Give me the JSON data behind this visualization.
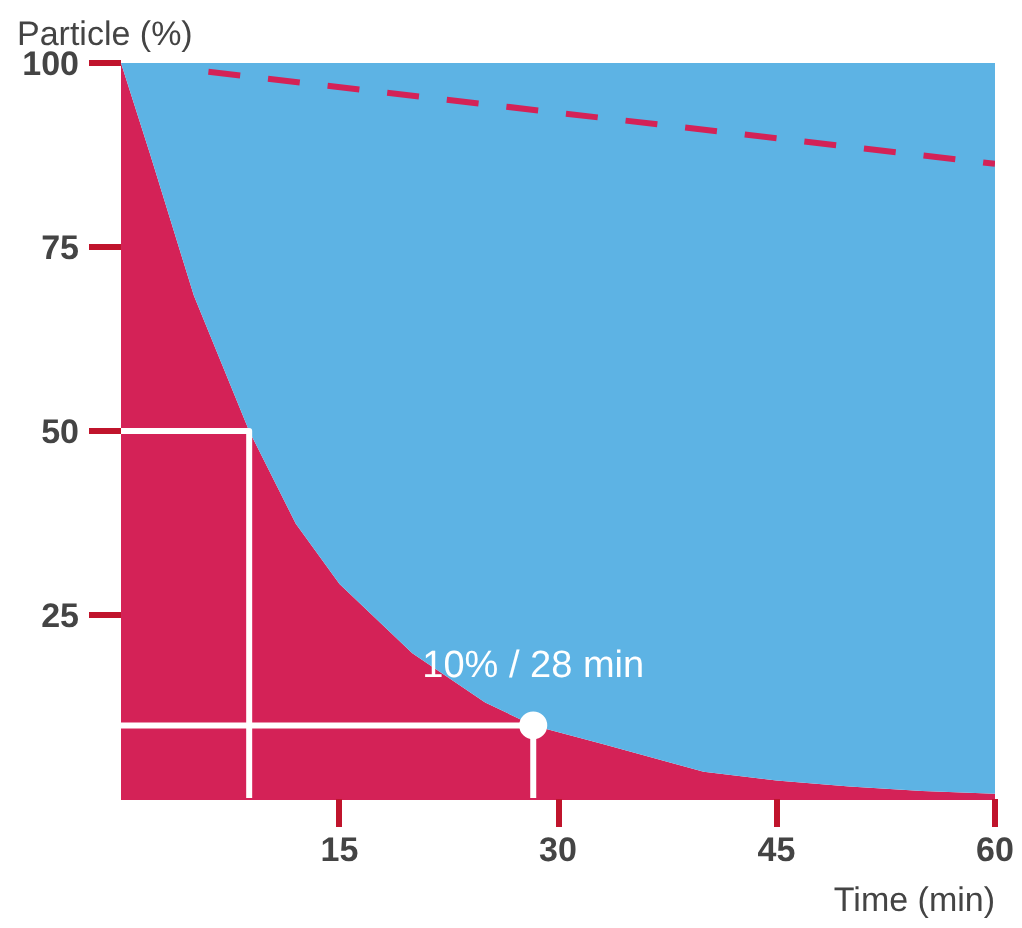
{
  "chart_data": {
    "type": "area",
    "ylabel": "Particle (%)",
    "xlabel": "Time (min)",
    "xlim": [
      0,
      60
    ],
    "ylim": [
      0,
      100
    ],
    "xticks": [
      15,
      30,
      45,
      60
    ],
    "yticks": [
      25,
      50,
      75,
      100
    ],
    "stacked": true,
    "x": [
      0,
      2,
      5,
      8.8,
      12,
      15,
      20,
      25,
      28.3,
      33,
      40,
      45,
      50,
      55,
      60
    ],
    "series": [
      {
        "color": "#d42257",
        "values": [
          100,
          87.6,
          68.4,
          50,
          37.4,
          29.2,
          19.8,
          13.1,
          10,
          7.5,
          3.7,
          2.5,
          1.7,
          1.1,
          0.7
        ]
      },
      {
        "color": "#5db3e4",
        "values": [
          0,
          12.4,
          31.6,
          50,
          62.6,
          70.8,
          80.2,
          86.9,
          90,
          92.5,
          96.3,
          97.5,
          98.3,
          98.9,
          99.3
        ]
      },
      {
        "type": "line",
        "color": "#d42257",
        "line_style": "dashed",
        "x": [
          6,
          60
        ],
        "values": [
          98.8,
          86.3
        ]
      },
      {
        "type": "line",
        "color": "#ffffff",
        "x": [
          0,
          8.8,
          8.8
        ],
        "values": [
          50,
          50,
          0
        ]
      },
      {
        "type": "line",
        "color": "#ffffff",
        "x": [
          0,
          28.3,
          28.3
        ],
        "values": [
          10,
          10,
          0
        ]
      },
      {
        "type": "scatter",
        "color": "#ffffff",
        "x": [
          28.3
        ],
        "values": [
          10
        ]
      }
    ],
    "annotations": [
      {
        "text": "10% / 28 min",
        "x": 28.3,
        "y": 10
      }
    ]
  }
}
